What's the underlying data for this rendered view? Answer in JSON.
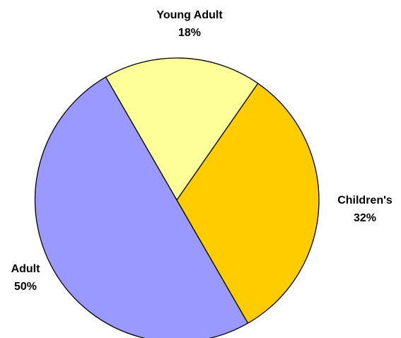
{
  "chart_data": {
    "type": "pie",
    "title": "",
    "start_angle_deg": 120,
    "direction": "clockwise",
    "slices": [
      {
        "label": "Young Adult",
        "value": 18,
        "value_label": "18%",
        "color": "#FFFF99"
      },
      {
        "label": "Children's",
        "value": 32,
        "value_label": "32%",
        "color": "#FFCC00"
      },
      {
        "label": "Adult",
        "value": 50,
        "value_label": "50%",
        "color": "#9999FF"
      }
    ]
  }
}
